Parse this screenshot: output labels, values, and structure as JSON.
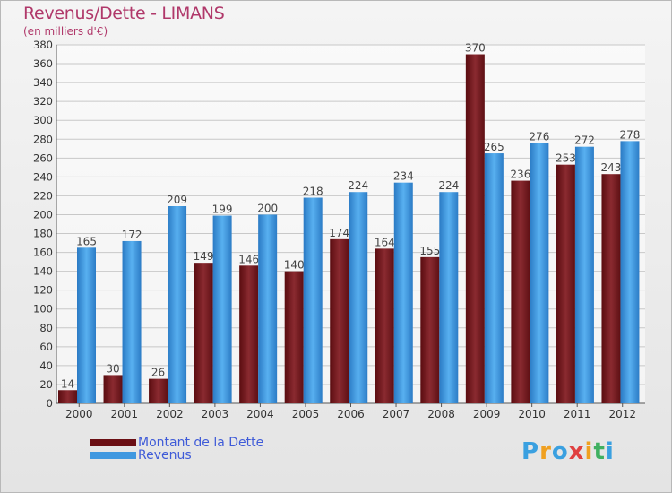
{
  "chart_data": {
    "type": "bar",
    "title": "Revenus/Dette - LIMANS",
    "subtitle": "(en milliers d'€)",
    "categories": [
      "2000",
      "2001",
      "2002",
      "2003",
      "2004",
      "2005",
      "2006",
      "2007",
      "2008",
      "2009",
      "2010",
      "2011",
      "2012"
    ],
    "series": [
      {
        "name": "Montant de la Dette",
        "color": "#7a1f24",
        "values": [
          14,
          30,
          26,
          149,
          146,
          140,
          174,
          164,
          155,
          370,
          236,
          253,
          243
        ]
      },
      {
        "name": "Revenus",
        "color": "#3f98e0",
        "values": [
          165,
          172,
          209,
          199,
          200,
          218,
          224,
          234,
          224,
          265,
          276,
          272,
          278
        ]
      }
    ],
    "ylim": [
      0,
      380
    ],
    "ytick_step": 20,
    "grid": true,
    "legend": "bottom-left"
  },
  "logo": {
    "letters": [
      "P",
      "r",
      "o",
      "x",
      "i",
      "t",
      "i"
    ],
    "colors": [
      "#3aa0e0",
      "#f0a020",
      "#3aa0e0",
      "#e04040",
      "#f0a020",
      "#40b060",
      "#3aa0e0"
    ]
  }
}
